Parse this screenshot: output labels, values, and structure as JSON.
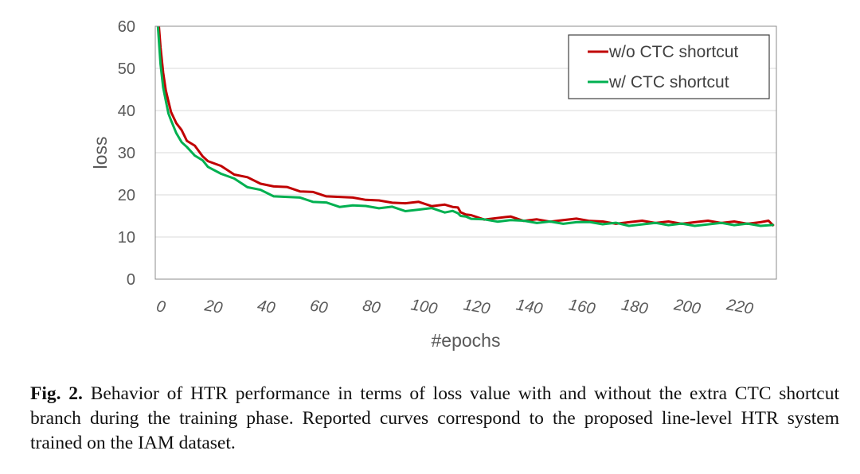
{
  "chart_data": {
    "type": "line",
    "xlabel": "#epochs",
    "ylabel": "loss",
    "xlim": [
      0,
      236
    ],
    "ylim": [
      0,
      60
    ],
    "yticks": [
      0,
      10,
      20,
      30,
      40,
      50,
      60
    ],
    "xticks": [
      0,
      20,
      40,
      60,
      80,
      100,
      120,
      140,
      160,
      180,
      200,
      220
    ],
    "grid": "horizontal",
    "legend_position": "top-right",
    "x": [
      1,
      2,
      3,
      4,
      5,
      6,
      8,
      10,
      12,
      15,
      18,
      20,
      25,
      30,
      35,
      40,
      45,
      50,
      55,
      60,
      65,
      70,
      75,
      80,
      85,
      90,
      95,
      100,
      105,
      110,
      113,
      115,
      116,
      118,
      120,
      125,
      130,
      135,
      140,
      145,
      150,
      155,
      160,
      165,
      170,
      175,
      180,
      185,
      190,
      195,
      200,
      205,
      210,
      215,
      220,
      225,
      230,
      233,
      235
    ],
    "series": [
      {
        "name": "w/o CTC shortcut",
        "color": "#c00000",
        "values": [
          63,
          55,
          49,
          45,
          42,
          40,
          37,
          35,
          33,
          31.5,
          29.5,
          28,
          26.5,
          25,
          24,
          23,
          22,
          21.5,
          21,
          20.5,
          20,
          19.5,
          19,
          19,
          18.5,
          18.5,
          18,
          18,
          17.5,
          17.5,
          17.5,
          17,
          15.5,
          15.5,
          15,
          14.5,
          14.5,
          14.5,
          14,
          14,
          14,
          14,
          14,
          14,
          13.5,
          13.5,
          13.5,
          13.5,
          13.5,
          13.5,
          13.5,
          13.5,
          13.5,
          13.5,
          13.5,
          13.5,
          13.5,
          13.5,
          12.8
        ]
      },
      {
        "name": "w/ CTC shortcut",
        "color": "#00b050",
        "values": [
          60,
          51,
          45.5,
          42,
          39.5,
          37.5,
          35,
          32.5,
          31,
          29.5,
          28,
          27,
          25,
          23.5,
          22,
          21,
          20,
          19.5,
          19,
          18.5,
          18,
          17.5,
          17.5,
          17,
          17,
          17,
          16.5,
          16.5,
          16.5,
          16,
          16,
          16,
          15,
          14.5,
          14.5,
          14,
          14,
          14,
          13.5,
          13.5,
          13.5,
          13.5,
          13.5,
          13.2,
          13.2,
          13.2,
          13,
          13,
          13,
          13,
          13,
          13,
          13,
          13,
          13,
          13,
          13,
          12.8,
          12.5
        ]
      }
    ]
  },
  "caption": {
    "label": "Fig. 2.",
    "text": "Behavior of HTR performance in terms of loss value with and without the extra CTC shortcut branch during the training phase. Reported curves correspond to the proposed line-level HTR system trained on the IAM dataset."
  }
}
